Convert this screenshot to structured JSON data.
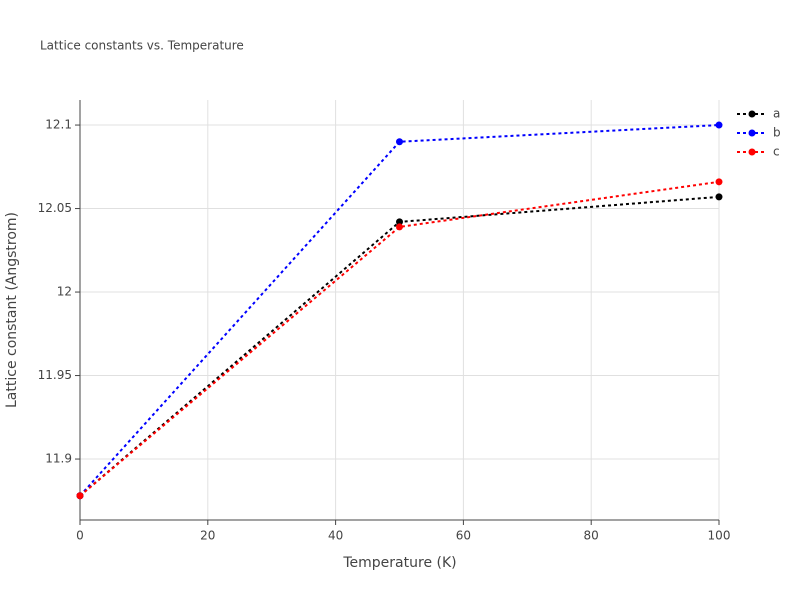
{
  "chart_data": {
    "type": "line",
    "title": "Lattice constants vs. Temperature",
    "x_label": "Temperature (K)",
    "y_label": "Lattice constant (Angstrom)",
    "x": [
      0,
      50,
      100
    ],
    "series": [
      {
        "name": "a",
        "color": "#000000",
        "values": [
          11.878,
          12.042,
          12.057
        ]
      },
      {
        "name": "b",
        "color": "#0000ff",
        "values": [
          11.878,
          12.09,
          12.1
        ]
      },
      {
        "name": "c",
        "color": "#ff0000",
        "values": [
          11.878,
          12.039,
          12.066
        ]
      }
    ],
    "xlim": [
      0,
      100
    ],
    "xticks": [
      0,
      20,
      40,
      60,
      80,
      100
    ],
    "ylim": [
      11.8635,
      12.115
    ],
    "yticks": [
      11.9,
      11.95,
      12,
      12.05,
      12.1
    ],
    "grid": true,
    "legend": "top-right"
  }
}
